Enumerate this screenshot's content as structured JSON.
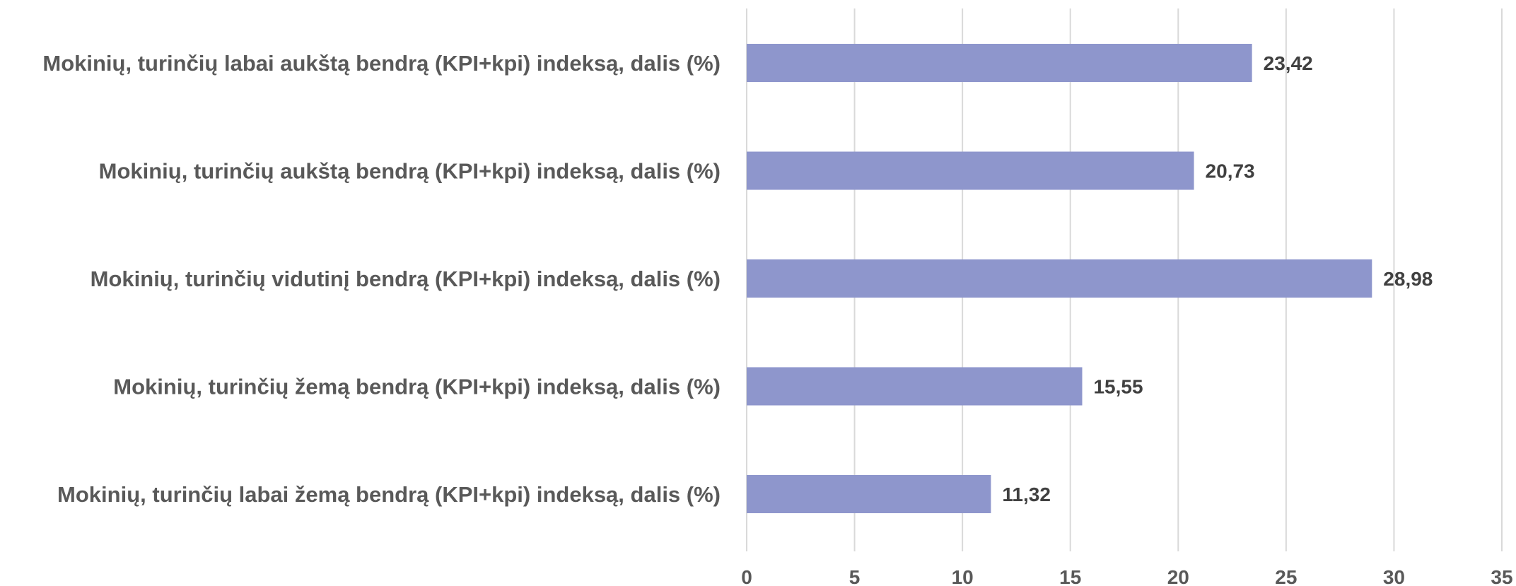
{
  "chart_data": {
    "type": "bar",
    "orientation": "horizontal",
    "categories": [
      "Mokinių, turinčių labai aukštą bendrą (KPI+kpi) indeksą, dalis (%)",
      "Mokinių, turinčių aukštą bendrą (KPI+kpi) indeksą, dalis (%)",
      "Mokinių, turinčių vidutinį bendrą (KPI+kpi) indeksą, dalis (%)",
      "Mokinių, turinčių žemą bendrą (KPI+kpi) indeksą, dalis (%)",
      "Mokinių, turinčių labai žemą bendrą (KPI+kpi) indeksą, dalis (%)"
    ],
    "values": [
      23.42,
      20.73,
      28.98,
      15.55,
      11.32
    ],
    "value_labels": [
      "23,42",
      "20,73",
      "28,98",
      "15,55",
      "11,32"
    ],
    "xlim": [
      0,
      35
    ],
    "xticks": [
      0,
      5,
      10,
      15,
      20,
      25,
      30,
      35
    ],
    "grid": true,
    "bar_color": "#8e96cc",
    "title": "",
    "xlabel": "",
    "ylabel": ""
  }
}
